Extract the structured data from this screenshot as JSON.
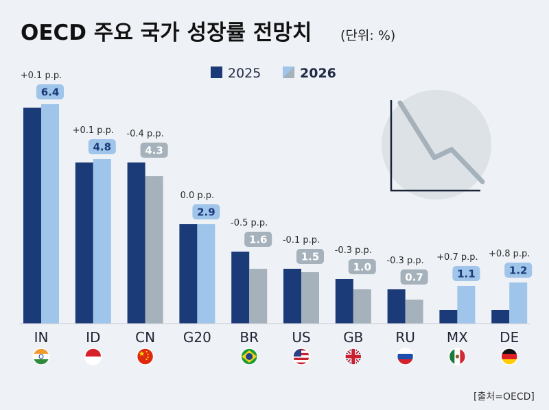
{
  "chart_data": {
    "type": "bar",
    "title": "OECD 주요 국가 성장률 전망치",
    "unit_note": "(단위: %)",
    "source": "[출처=OECD]",
    "series": [
      {
        "name": "2025",
        "color": "#1b3a78"
      },
      {
        "name": "2026",
        "color_up": "#9fc5ea",
        "color_down": "#a5b1bb"
      }
    ],
    "categories": [
      {
        "code": "IN",
        "flag": "india-flag",
        "v2025": 6.3,
        "v2026": 6.4,
        "change": "+0.1 p.p.",
        "label": "6.4"
      },
      {
        "code": "ID",
        "flag": "indonesia-flag",
        "v2025": 4.7,
        "v2026": 4.8,
        "change": "+0.1 p.p.",
        "label": "4.8"
      },
      {
        "code": "CN",
        "flag": "china-flag",
        "v2025": 4.7,
        "v2026": 4.3,
        "change": "-0.4 p.p.",
        "label": "4.3"
      },
      {
        "code": "G20",
        "flag": "g20-logo",
        "v2025": 2.9,
        "v2026": 2.9,
        "change": "0.0 p.p.",
        "label": "2.9"
      },
      {
        "code": "BR",
        "flag": "brazil-flag",
        "v2025": 2.1,
        "v2026": 1.6,
        "change": "-0.5 p.p.",
        "label": "1.6"
      },
      {
        "code": "US",
        "flag": "usa-flag",
        "v2025": 1.6,
        "v2026": 1.5,
        "change": "-0.1 p.p.",
        "label": "1.5"
      },
      {
        "code": "GB",
        "flag": "uk-flag",
        "v2025": 1.3,
        "v2026": 1.0,
        "change": "-0.3 p.p.",
        "label": "1.0"
      },
      {
        "code": "RU",
        "flag": "russia-flag",
        "v2025": 1.0,
        "v2026": 0.7,
        "change": "-0.3 p.p.",
        "label": "0.7"
      },
      {
        "code": "MX",
        "flag": "mexico-flag",
        "v2025": 0.4,
        "v2026": 1.1,
        "change": "+0.7 p.p.",
        "label": "1.1"
      },
      {
        "code": "DE",
        "flag": "germany-flag",
        "v2025": 0.4,
        "v2026": 1.2,
        "change": "+0.8 p.p.",
        "label": "1.2"
      }
    ],
    "ylim": [
      0,
      6.5
    ],
    "grid": false,
    "legend_position": "top-center",
    "decoration": "declining-line-icon"
  }
}
